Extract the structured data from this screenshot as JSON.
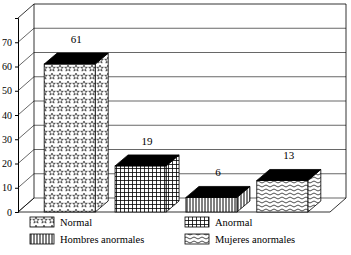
{
  "chart_data": {
    "type": "bar",
    "categories": [
      "Normal",
      "Anormal",
      "Hombres anormales",
      "Mujeres anormales"
    ],
    "values": [
      61,
      19,
      6,
      13
    ],
    "color": "#000000",
    "ylim": [
      0,
      80
    ],
    "yticks": [
      0,
      10,
      20,
      30,
      40,
      50,
      60,
      70
    ],
    "grid": true,
    "data_labels": true,
    "legend": "bottom",
    "tick_labels": "y"
  }
}
